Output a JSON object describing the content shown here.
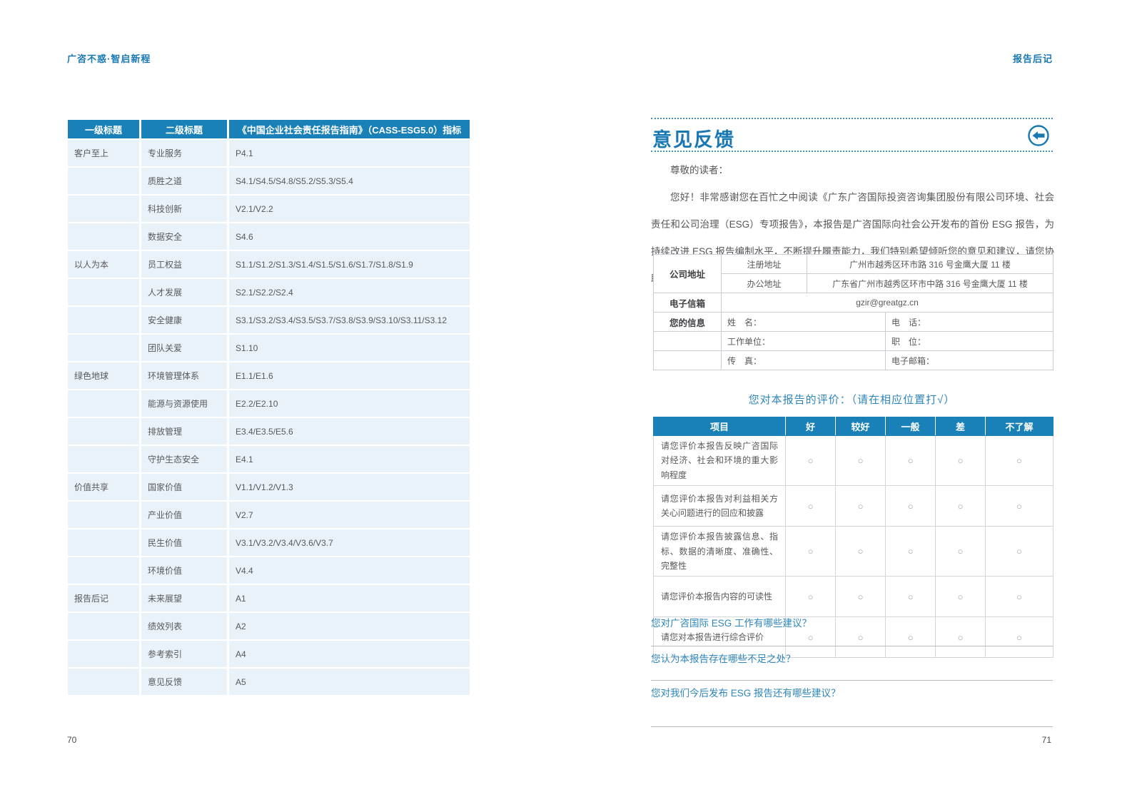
{
  "colors": {
    "accent_blue": "#1a80b8",
    "title_blue": "#1878b4",
    "light_row": "#e9f2f9",
    "text_gray": "#58595b"
  },
  "page_left": {
    "running_head": "广咨不惑·智启新程",
    "page_number": "70",
    "index_table": {
      "headers": [
        "一级标题",
        "二级标题",
        "《中国企业社会责任报告指南》（CASS-ESG5.0）指标"
      ],
      "rows": [
        {
          "l1": "客户至上",
          "l2": "专业服务",
          "idx": "P4.1"
        },
        {
          "l1": "",
          "l2": "质胜之道",
          "idx": "S4.1/S4.5/S4.8/S5.2/S5.3/S5.4"
        },
        {
          "l1": "",
          "l2": "科技创新",
          "idx": "V2.1/V2.2"
        },
        {
          "l1": "",
          "l2": "数据安全",
          "idx": "S4.6"
        },
        {
          "l1": "以人为本",
          "l2": "员工权益",
          "idx": "S1.1/S1.2/S1.3/S1.4/S1.5/S1.6/S1.7/S1.8/S1.9"
        },
        {
          "l1": "",
          "l2": "人才发展",
          "idx": "S2.1/S2.2/S2.4"
        },
        {
          "l1": "",
          "l2": "安全健康",
          "idx": "S3.1/S3.2/S3.4/S3.5/S3.7/S3.8/S3.9/S3.10/S3.11/S3.12"
        },
        {
          "l1": "",
          "l2": "团队关爱",
          "idx": "S1.10"
        },
        {
          "l1": "绿色地球",
          "l2": "环境管理体系",
          "idx": "E1.1/E1.6"
        },
        {
          "l1": "",
          "l2": "能源与资源使用",
          "idx": "E2.2/E2.10"
        },
        {
          "l1": "",
          "l2": "排放管理",
          "idx": "E3.4/E3.5/E5.6"
        },
        {
          "l1": "",
          "l2": "守护生态安全",
          "idx": "E4.1"
        },
        {
          "l1": "价值共享",
          "l2": "国家价值",
          "idx": "V1.1/V1.2/V1.3"
        },
        {
          "l1": "",
          "l2": "产业价值",
          "idx": "V2.7"
        },
        {
          "l1": "",
          "l2": "民生价值",
          "idx": "V3.1/V3.2/V3.4/V3.6/V3.7"
        },
        {
          "l1": "",
          "l2": "环境价值",
          "idx": "V4.4"
        },
        {
          "l1": "报告后记",
          "l2": "未来展望",
          "idx": "A1"
        },
        {
          "l1": "",
          "l2": "绩效列表",
          "idx": "A2"
        },
        {
          "l1": "",
          "l2": "参考索引",
          "idx": "A4"
        },
        {
          "l1": "",
          "l2": "意见反馈",
          "idx": "A5"
        }
      ]
    }
  },
  "page_right": {
    "running_head": "报告后记",
    "page_number": "71",
    "section_title": "意见反馈",
    "back_icon": "circle-left-arrow",
    "salutation": "尊敬的读者：",
    "intro": "您好！非常感谢您在百忙之中阅读《广东广咨国际投资咨询集团股份有限公司环境、社会责任和公司治理（ESG）专项报告》，本报告是广咨国际向社会公开发布的首份 ESG 报告，为持续改进 ESG 报告编制水平，不断提升履责能力，我们特别希望倾听您的意见和建议，请您协助完成意见反馈表中的相关问题，并选择以下方式反馈给我们：",
    "contact_table": {
      "company_address_label": "公司地址",
      "registered_label": "注册地址",
      "registered_value": "广州市越秀区环市路 316 号金鹰大厦 11 楼",
      "office_label": "办公地址",
      "office_value": "广东省广州市越秀区环市中路 316 号金鹰大厦 11 楼",
      "email_label": "电子信箱",
      "email_value": "gzir@greatgz.cn",
      "info_label": "您的信息",
      "fields": [
        [
          "姓　名：",
          "电　话："
        ],
        [
          "工作单位：",
          "职　位："
        ],
        [
          "传　真：",
          "电子邮箱："
        ]
      ]
    },
    "rating": {
      "heading": "您对本报告的评价：（请在相应位置打√）",
      "columns": [
        "项目",
        "好",
        "较好",
        "一般",
        "差",
        "不了解"
      ],
      "circle": "○",
      "items": [
        "请您评价本报告反映广咨国际对经济、社会和环境的重大影响程度",
        "请您评价本报告对利益相关方关心问题进行的回应和披露",
        "请您评价本报告披露信息、指标、数据的清晰度、准确性、完整性",
        "请您评价本报告内容的可读性",
        "请您对本报告进行综合评价"
      ]
    },
    "questions": [
      "您对广咨国际 ESG 工作有哪些建议？",
      "您认为本报告存在哪些不足之处？",
      "您对我们今后发布 ESG 报告还有哪些建议？"
    ]
  }
}
